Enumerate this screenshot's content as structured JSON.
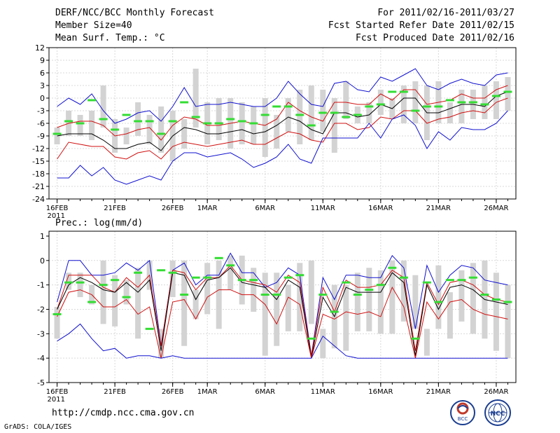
{
  "header": {
    "title_line1": "DERF/NCC/BCC Monthly Forecast",
    "title_line2": "Member Size=40",
    "title_line3": "Mean Surf. Temp.: °C",
    "right_line1": "For 2011/02/16-2011/03/27",
    "right_line2": "Fcst Started Refer Date 2011/02/15",
    "right_line3": "Fcst Produced Date 2011/02/16"
  },
  "footer": {
    "url": "http://cmdp.ncc.cma.gov.cn",
    "grads_credit": "GrADS: COLA/IGES",
    "logo_bcc_text": "BCC",
    "logo_ncc_text": "NCC"
  },
  "colors": {
    "grid": "#d9d9d9",
    "box": "#d3d3d3",
    "obs": "#33dd33",
    "mean": "#000000",
    "inner": "#d01010",
    "outer": "#1010d0"
  },
  "chart_data": [
    {
      "type": "line",
      "title": "Mean Surf. Temp.: °C",
      "x_tick_labels": [
        "16FEB",
        "21FEB",
        "26FEB",
        "1MAR",
        "6MAR",
        "11MAR",
        "16MAR",
        "21MAR",
        "26MAR"
      ],
      "x_tick_days": [
        0,
        5,
        10,
        13,
        18,
        23,
        28,
        33,
        38
      ],
      "x_year_label": "2011",
      "xlim": [
        -0.7,
        39.7
      ],
      "ylim": [
        -24,
        12
      ],
      "y_ticks": [
        -24,
        -21,
        -18,
        -15,
        -12,
        -9,
        -6,
        -3,
        0,
        3,
        6,
        9,
        12
      ],
      "grid": true,
      "box_low": [
        -11,
        -9,
        -9,
        -10,
        -7,
        -13,
        -11,
        -9,
        -11,
        -13,
        -15,
        -12,
        -7,
        -11,
        -10,
        -12,
        -11,
        -11,
        -14,
        -12,
        -8,
        -11,
        -10,
        -8,
        -13,
        -5,
        -6,
        -6,
        -4,
        -5,
        -6,
        -6,
        -10,
        -6,
        -6,
        -6,
        -5,
        -5,
        -5,
        -3
      ],
      "box_high": [
        -7,
        -3,
        -4,
        -3,
        3,
        -5,
        -7,
        -1,
        -4,
        -2,
        -3,
        -5,
        7,
        -1,
        0,
        0,
        -1,
        -2,
        0,
        -4,
        0,
        2,
        3,
        2,
        0,
        4,
        -2,
        -1,
        2,
        0,
        3,
        4,
        3,
        4,
        -1,
        2,
        2,
        3,
        4,
        5
      ],
      "series": [
        {
          "name": "Observed",
          "style": "green-dash",
          "values": [
            -8.5,
            -5.5,
            -6,
            -0.5,
            -5,
            -7.5,
            -4,
            -5.5,
            -5.5,
            -8.5,
            -5.5,
            -1,
            -4.5,
            -6,
            -6,
            -5,
            -5.5,
            -6,
            -4,
            -2,
            -2,
            -4,
            -6.5,
            -3.5,
            -3.5,
            -4.5,
            -4,
            -2,
            -1.5,
            1.5,
            1.5,
            -3,
            -2,
            -2,
            -0.5,
            -1,
            -1,
            -1.5,
            0.5,
            1.5
          ]
        },
        {
          "name": "Ensemble max",
          "style": "blue",
          "values": [
            -2,
            0,
            -1.5,
            1,
            -3,
            -6,
            -5,
            -3.5,
            -3,
            -5.5,
            -2,
            2.5,
            -2,
            -1.5,
            -1.5,
            -1,
            -1.5,
            -2,
            -2,
            0,
            4,
            1,
            -1.5,
            -2,
            3.5,
            4,
            2,
            1.5,
            5,
            4,
            5.5,
            7,
            3,
            2,
            3.5,
            4.5,
            3.5,
            3,
            5.5,
            6
          ]
        },
        {
          "name": "Upper bound",
          "style": "red",
          "values": [
            -7,
            -6,
            -5.5,
            -5.5,
            -6.5,
            -9,
            -8.5,
            -7.5,
            -7,
            -10,
            -6.5,
            -4.5,
            -5,
            -6.5,
            -6.5,
            -6,
            -5.5,
            -6,
            -6.5,
            -5,
            -1,
            -3,
            -4.5,
            -5.5,
            -1,
            -1,
            -1.5,
            -1.5,
            1,
            -0.5,
            2,
            2,
            -1.5,
            -1,
            -0.5,
            1,
            0,
            0,
            2,
            3
          ]
        },
        {
          "name": "Ensemble mean",
          "style": "black",
          "values": [
            -9,
            -8.5,
            -8.5,
            -8.5,
            -10,
            -12,
            -12,
            -11,
            -10.5,
            -12.5,
            -9,
            -7,
            -7.5,
            -8.5,
            -8.5,
            -8,
            -7.5,
            -8.5,
            -8,
            -6.5,
            -4.5,
            -5.5,
            -7.5,
            -8.5,
            -3.5,
            -3.5,
            -4.5,
            -4,
            -1.5,
            -2.5,
            0,
            0,
            -3.5,
            -3.5,
            -2.5,
            -1.5,
            -1.5,
            -2,
            0.5,
            1.5
          ]
        },
        {
          "name": "Lower bound",
          "style": "red",
          "values": [
            -14.5,
            -10.5,
            -11,
            -11.5,
            -11.5,
            -14,
            -14.5,
            -13,
            -12.5,
            -14.5,
            -11.5,
            -10.5,
            -11,
            -11.5,
            -11,
            -10.5,
            -10,
            -11,
            -11,
            -9.5,
            -8,
            -8.5,
            -10,
            -10.5,
            -6,
            -6,
            -7.5,
            -7,
            -4.5,
            -5,
            -3,
            -3,
            -6,
            -5,
            -4.5,
            -3.5,
            -3,
            -3.5,
            -1,
            0
          ]
        },
        {
          "name": "Ensemble min",
          "style": "blue",
          "values": [
            -19,
            -19,
            -16,
            -18.5,
            -16.5,
            -19.5,
            -20.5,
            -19.5,
            -18.5,
            -19.5,
            -15,
            -13,
            -13,
            -14,
            -13.5,
            -13,
            -14.5,
            -16.5,
            -15.5,
            -14,
            -11,
            -14.5,
            -15.5,
            -9.5,
            -9.5,
            -9.5,
            -9.5,
            -6,
            -9.5,
            -5,
            -4,
            -6.5,
            -12,
            -8,
            -10,
            -7,
            -7.5,
            -7.5,
            -6,
            -3
          ]
        }
      ]
    },
    {
      "type": "line",
      "title": "Prec.: log(mm/d)",
      "x_tick_labels": [
        "16FEB",
        "21FEB",
        "26FEB",
        "1MAR",
        "6MAR",
        "11MAR",
        "16MAR",
        "21MAR",
        "26MAR"
      ],
      "x_tick_days": [
        0,
        5,
        10,
        13,
        18,
        23,
        28,
        33,
        38
      ],
      "x_year_label": "2011",
      "xlim": [
        -0.7,
        39.7
      ],
      "ylim": [
        -5,
        1.2
      ],
      "y_ticks": [
        -5,
        -4,
        -3,
        -2,
        -1,
        0,
        1
      ],
      "grid": true,
      "box_low": [
        -3.2,
        -1.2,
        -1.5,
        -1.8,
        -2.6,
        -2.7,
        -1.8,
        -3.2,
        -1.2,
        -4,
        -1.5,
        -3.5,
        -2.4,
        -2.2,
        -2.8,
        -1.2,
        -1.8,
        -2.1,
        -3.9,
        -3.5,
        -2.9,
        -2.9,
        -2.6,
        -4,
        -3.6,
        -3.7,
        -2.9,
        -2.9,
        -3,
        -3,
        -2.5,
        -2.8,
        -3.9,
        -2.8,
        -3.2,
        -2.5,
        -3,
        -3.2,
        -3.7,
        -4
      ],
      "box_high": [
        -1.9,
        -0.5,
        -0.5,
        -1,
        0,
        -0.6,
        -0.8,
        -0.3,
        0,
        -2.8,
        0,
        0,
        -1.2,
        -0.1,
        0,
        0.2,
        0.2,
        -0.3,
        -0.5,
        -0.5,
        -1,
        -0.1,
        0,
        -2.8,
        -1,
        -1,
        -0.5,
        -0.3,
        -0.4,
        0,
        0,
        -0.6,
        -2.8,
        -0.2,
        -1.3,
        -0.4,
        -0.1,
        0,
        -0.5,
        -1
      ]
    }
  ]
}
